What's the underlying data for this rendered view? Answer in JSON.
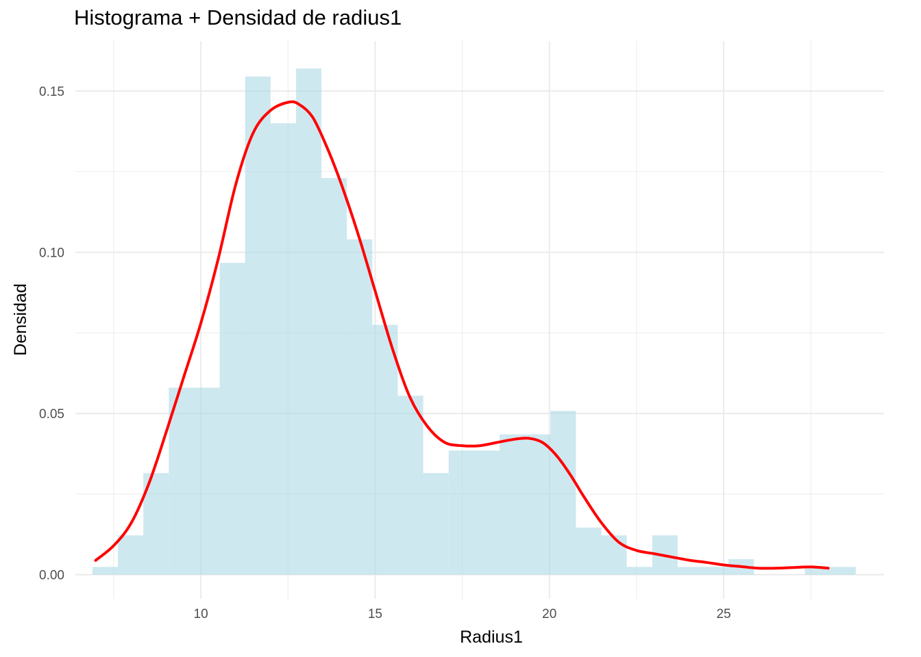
{
  "chart_data": {
    "type": "bar",
    "title": "Histograma + Densidad de radius1",
    "xlabel": "Radius1",
    "ylabel": "Densidad",
    "xlim": [
      6.4,
      29.6
    ],
    "ylim": [
      -0.0075,
      0.1655
    ],
    "x_ticks": [
      10,
      15,
      20,
      25
    ],
    "x_tick_labels": [
      "10",
      "15",
      "20",
      "25"
    ],
    "y_ticks": [
      0.0,
      0.05,
      0.1,
      0.15
    ],
    "y_tick_labels": [
      "0.00",
      "0.05",
      "0.10",
      "0.15"
    ],
    "grid": true,
    "histogram": {
      "name": "Histograma",
      "color": "#add8e6",
      "opacity": 0.6,
      "bins": [
        {
          "x0": 6.89,
          "x1": 7.62,
          "y": 0.0024
        },
        {
          "x0": 7.62,
          "x1": 8.35,
          "y": 0.0122
        },
        {
          "x0": 8.35,
          "x1": 9.08,
          "y": 0.0315
        },
        {
          "x0": 9.08,
          "x1": 9.81,
          "y": 0.058
        },
        {
          "x0": 9.81,
          "x1": 10.54,
          "y": 0.058
        },
        {
          "x0": 10.54,
          "x1": 11.27,
          "y": 0.0967
        },
        {
          "x0": 11.27,
          "x1": 12.0,
          "y": 0.1545
        },
        {
          "x0": 12.0,
          "x1": 12.73,
          "y": 0.14
        },
        {
          "x0": 12.73,
          "x1": 13.46,
          "y": 0.157
        },
        {
          "x0": 13.46,
          "x1": 14.19,
          "y": 0.123
        },
        {
          "x0": 14.19,
          "x1": 14.92,
          "y": 0.104
        },
        {
          "x0": 14.92,
          "x1": 15.65,
          "y": 0.0775
        },
        {
          "x0": 15.65,
          "x1": 16.38,
          "y": 0.0555
        },
        {
          "x0": 16.38,
          "x1": 17.11,
          "y": 0.0315
        },
        {
          "x0": 17.11,
          "x1": 17.84,
          "y": 0.0385
        },
        {
          "x0": 17.84,
          "x1": 18.57,
          "y": 0.0385
        },
        {
          "x0": 18.57,
          "x1": 19.3,
          "y": 0.0435
        },
        {
          "x0": 19.3,
          "x1": 20.03,
          "y": 0.0435
        },
        {
          "x0": 20.03,
          "x1": 20.76,
          "y": 0.0508
        },
        {
          "x0": 20.76,
          "x1": 21.49,
          "y": 0.0146
        },
        {
          "x0": 21.49,
          "x1": 22.22,
          "y": 0.0122
        },
        {
          "x0": 22.22,
          "x1": 22.95,
          "y": 0.0024
        },
        {
          "x0": 22.95,
          "x1": 23.68,
          "y": 0.0122
        },
        {
          "x0": 23.68,
          "x1": 24.41,
          "y": 0.0024
        },
        {
          "x0": 24.41,
          "x1": 25.14,
          "y": 0.0024
        },
        {
          "x0": 25.14,
          "x1": 25.87,
          "y": 0.0048
        },
        {
          "x0": 25.87,
          "x1": 26.6,
          "y": 0.0
        },
        {
          "x0": 26.6,
          "x1": 27.33,
          "y": 0.0
        },
        {
          "x0": 27.33,
          "x1": 28.06,
          "y": 0.0024
        },
        {
          "x0": 28.06,
          "x1": 28.79,
          "y": 0.0024
        }
      ]
    },
    "density": {
      "name": "Densidad",
      "color": "#ff0000",
      "x": [
        6.98,
        7.5,
        8.0,
        8.5,
        9.0,
        9.5,
        10.0,
        10.5,
        11.0,
        11.5,
        12.0,
        12.5,
        12.8,
        13.2,
        13.6,
        14.0,
        14.5,
        15.0,
        15.5,
        16.0,
        16.5,
        17.0,
        17.5,
        18.0,
        18.5,
        19.0,
        19.4,
        19.8,
        20.2,
        20.6,
        21.0,
        21.5,
        22.0,
        22.5,
        23.0,
        23.5,
        24.0,
        24.5,
        25.0,
        25.5,
        26.0,
        26.5,
        27.0,
        27.5,
        28.0
      ],
      "y": [
        0.0044,
        0.009,
        0.016,
        0.028,
        0.044,
        0.061,
        0.078,
        0.098,
        0.121,
        0.137,
        0.144,
        0.1465,
        0.146,
        0.142,
        0.133,
        0.122,
        0.106,
        0.088,
        0.07,
        0.055,
        0.046,
        0.041,
        0.04,
        0.04,
        0.041,
        0.042,
        0.0423,
        0.041,
        0.037,
        0.031,
        0.024,
        0.016,
        0.01,
        0.0075,
        0.0065,
        0.0055,
        0.0045,
        0.0038,
        0.003,
        0.0025,
        0.002,
        0.002,
        0.0022,
        0.0024,
        0.002
      ]
    }
  }
}
